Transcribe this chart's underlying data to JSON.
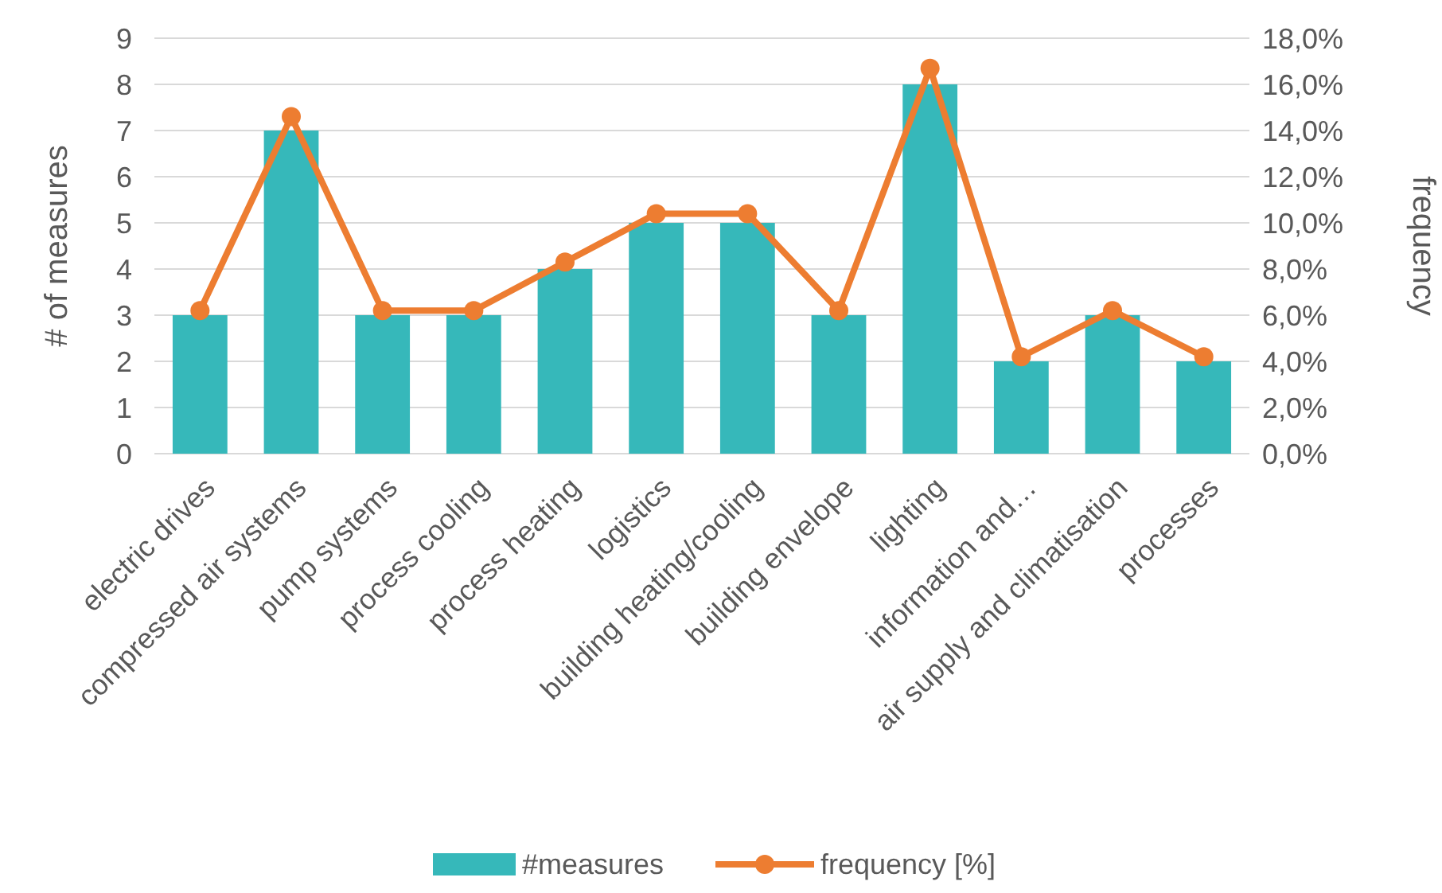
{
  "chart_data": {
    "type": "bar",
    "categories": [
      "electric drives",
      "compressed air systems",
      "pump systems",
      "process cooling",
      "process heating",
      "logistics",
      "building heating/cooling",
      "building envelope",
      "lighting",
      "information and…",
      "air supply and climatisation",
      "processes"
    ],
    "series": [
      {
        "name": "#measures",
        "color": "#36b8ba",
        "values": [
          3,
          7,
          3,
          3,
          4,
          5,
          5,
          3,
          8,
          2,
          3,
          2
        ]
      },
      {
        "name": "frequency [%]",
        "type": "line",
        "axis": "y2",
        "color": "#ed7d31",
        "marker": "circle",
        "values": [
          6.2,
          14.6,
          6.2,
          6.2,
          8.3,
          10.4,
          10.4,
          6.2,
          16.7,
          4.2,
          6.2,
          4.2
        ]
      }
    ],
    "ylabel": "# of measures",
    "y2label": "frequency",
    "ylim": [
      0,
      9
    ],
    "yticks": [
      0,
      1,
      2,
      3,
      4,
      5,
      6,
      7,
      8,
      9
    ],
    "y2lim": [
      0,
      18
    ],
    "y2ticks": [
      {
        "value": 0,
        "label": "0,0%"
      },
      {
        "value": 2,
        "label": "2,0%"
      },
      {
        "value": 4,
        "label": "4,0%"
      },
      {
        "value": 6,
        "label": "6,0%"
      },
      {
        "value": 8,
        "label": "8,0%"
      },
      {
        "value": 10,
        "label": "10,0%"
      },
      {
        "value": 12,
        "label": "12,0%"
      },
      {
        "value": 14,
        "label": "14,0%"
      },
      {
        "value": 16,
        "label": "16,0%"
      },
      {
        "value": 18,
        "label": "18,0%"
      }
    ],
    "grid": "y",
    "legend": "bottom"
  }
}
